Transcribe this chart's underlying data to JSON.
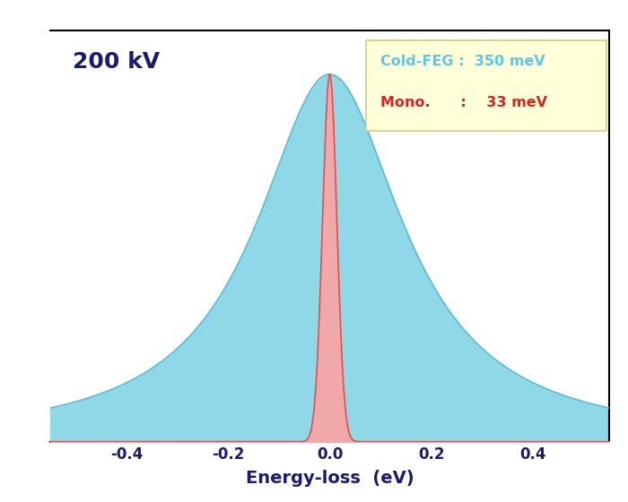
{
  "title_text": "200 kV",
  "xlabel": "Energy-loss  (eV)",
  "xlim": [
    -0.55,
    0.55
  ],
  "ylim": [
    0,
    1.12
  ],
  "feg_fwhm": 0.35,
  "mono_fwhm": 0.033,
  "feg_color": "#8ed8e8",
  "feg_edge_color": "#60bcd0",
  "mono_color": "#f0a8a8",
  "mono_edge_color": "#e05050",
  "legend_bg": "#ffffd8",
  "legend_edge_color": "#cccc88",
  "legend_feg_color": "#5bc8e8",
  "legend_mono_color": "#e02020",
  "label_color": "#1a1a6e",
  "annotation_fontsize": 18,
  "xlabel_fontsize": 14,
  "tick_fontsize": 12,
  "xtick_labels": [
    "-0.4",
    "-0.2",
    "0.0",
    "0.2",
    "0.4"
  ],
  "xtick_positions": [
    -0.4,
    -0.2,
    0.0,
    0.2,
    0.4
  ]
}
